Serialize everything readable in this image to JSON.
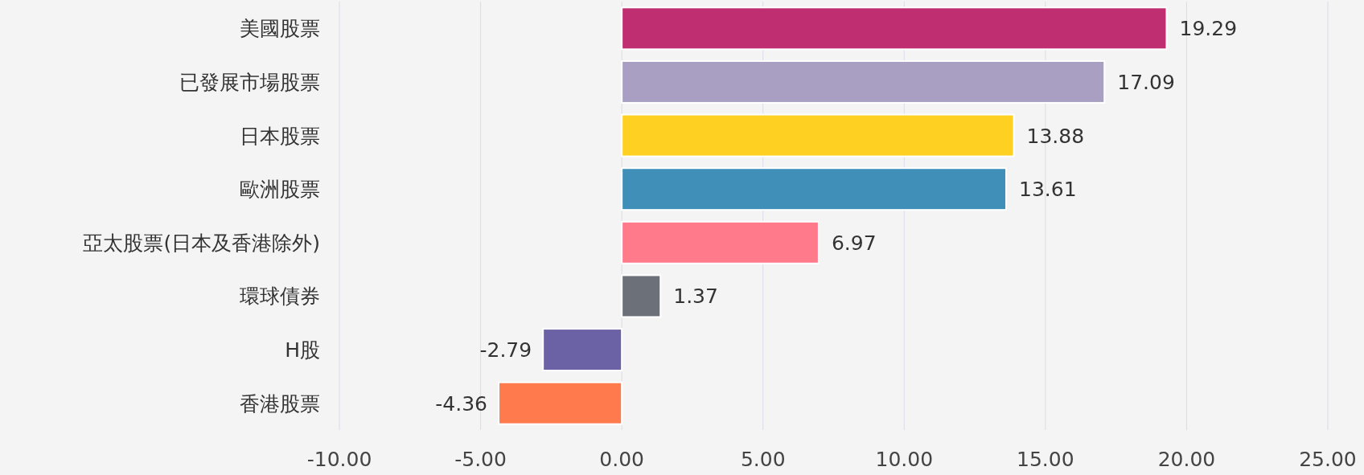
{
  "chart_data": {
    "type": "bar",
    "orientation": "horizontal",
    "categories": [
      "美國股票",
      "已發展市場股票",
      "日本股票",
      "歐洲股票",
      "亞太股票(日本及香港除外)",
      "環球債券",
      "H股",
      "香港股票"
    ],
    "values": [
      19.29,
      17.09,
      13.88,
      13.61,
      6.97,
      1.37,
      -2.79,
      -4.36
    ],
    "colors": [
      "#c02e72",
      "#a89fc2",
      "#fdd022",
      "#3f8fb9",
      "#ff7b8b",
      "#6c7078",
      "#6a62a4",
      "#ff7a4c"
    ],
    "xlim": [
      -10,
      25
    ],
    "xticks": [
      {
        "value": -10,
        "label": "-10.00"
      },
      {
        "value": -5,
        "label": "-5.00"
      },
      {
        "value": 0,
        "label": "0.00"
      },
      {
        "value": 5,
        "label": "5.00"
      },
      {
        "value": 10,
        "label": "10.00"
      },
      {
        "value": 15,
        "label": "15.00"
      },
      {
        "value": 20,
        "label": "20.00"
      },
      {
        "value": 25,
        "label": "25.00"
      }
    ],
    "grid": "x",
    "data_labels": true
  }
}
